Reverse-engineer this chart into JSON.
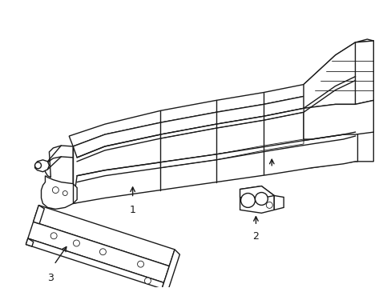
{
  "background_color": "#ffffff",
  "line_color": "#1a1a1a",
  "line_width": 1.0,
  "fig_width": 4.89,
  "fig_height": 3.6,
  "dpi": 100
}
